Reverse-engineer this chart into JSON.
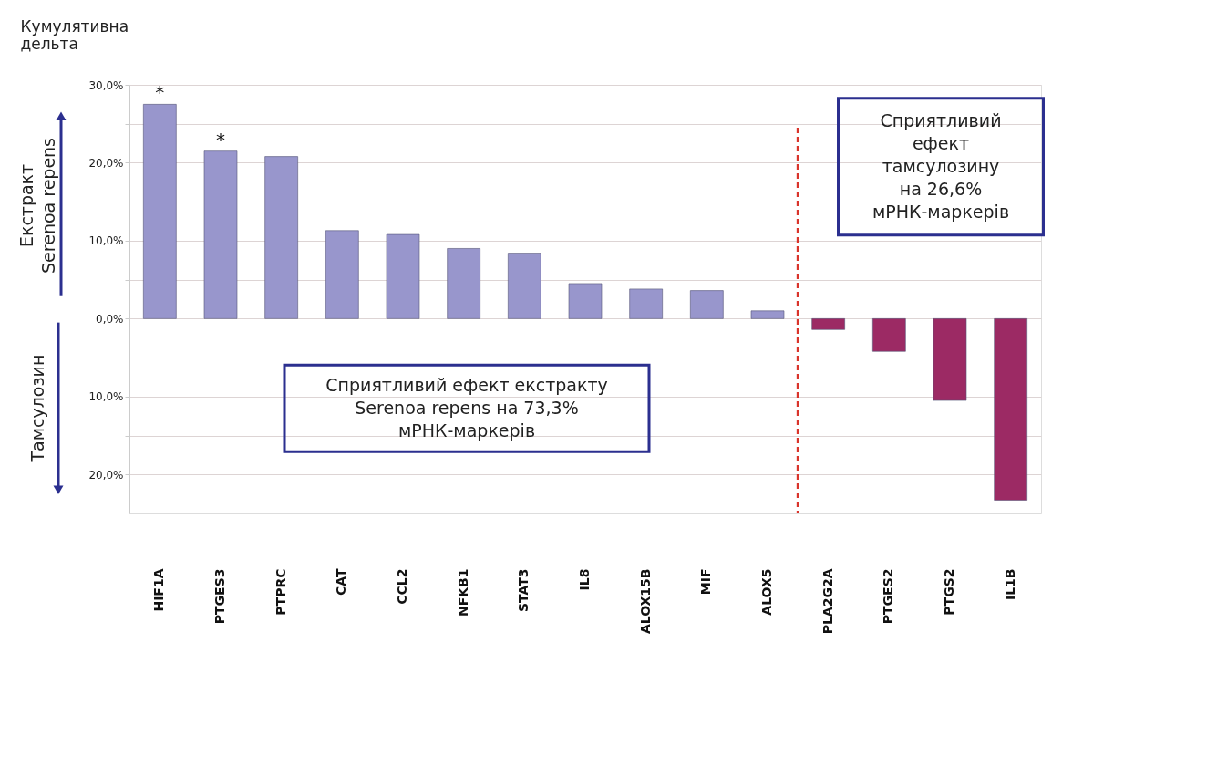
{
  "chart_data": {
    "type": "bar",
    "ylabel": "Кумулятивна дельта",
    "categories": [
      "HIF1A",
      "PTGES3",
      "PTPRC",
      "CAT",
      "CCL2",
      "NFKB1",
      "STAT3",
      "IL8",
      "ALOX15B",
      "MIF",
      "ALOX5",
      "PLA2G2A",
      "PTGES2",
      "PTGS2",
      "IL1B"
    ],
    "values": [
      27.5,
      21.5,
      20.8,
      11.3,
      10.8,
      9.0,
      8.4,
      4.5,
      3.8,
      3.6,
      1.0,
      -1.4,
      -4.2,
      -10.5,
      -23.3
    ],
    "colors": [
      "#9896cc",
      "#9896cc",
      "#9896cc",
      "#9896cc",
      "#9896cc",
      "#9896cc",
      "#9896cc",
      "#9896cc",
      "#9896cc",
      "#9896cc",
      "#9896cc",
      "#9c2a64",
      "#9c2a64",
      "#9c2a64",
      "#9c2a64"
    ],
    "ylim": [
      -25,
      30
    ],
    "yticks": [
      {
        "value": 30,
        "label": "30,0%"
      },
      {
        "value": 25,
        "label": null
      },
      {
        "value": 20,
        "label": "20,0%"
      },
      {
        "value": 15,
        "label": null
      },
      {
        "value": 10,
        "label": "10,0%"
      },
      {
        "value": 5,
        "label": null
      },
      {
        "value": 0,
        "label": "0,0%"
      },
      {
        "value": -5,
        "label": null
      },
      {
        "value": -10,
        "label": "10,0%"
      },
      {
        "value": -15,
        "label": null
      },
      {
        "value": -20,
        "label": "20,0%"
      }
    ],
    "grid": "y",
    "ref_lines": [
      {
        "axis": "x",
        "value": "PLA2G2A",
        "color": "#d9342b",
        "line_style": "dashed"
      }
    ],
    "annotations": [
      {
        "text": "*",
        "x": "HIF1A",
        "y": 27.5
      },
      {
        "text": "*",
        "x": "PTGES3",
        "y": 21.5
      },
      "Екстракт\nSerenoa repens",
      "Тамсулозин",
      "Сприятливий ефект екстракту\nSerenoa repens на 73,3%\nмРНК-маркерів",
      "Сприятливий\nефект\nтамсулозину\nна 26,6%\nмРНК-маркерів"
    ]
  }
}
